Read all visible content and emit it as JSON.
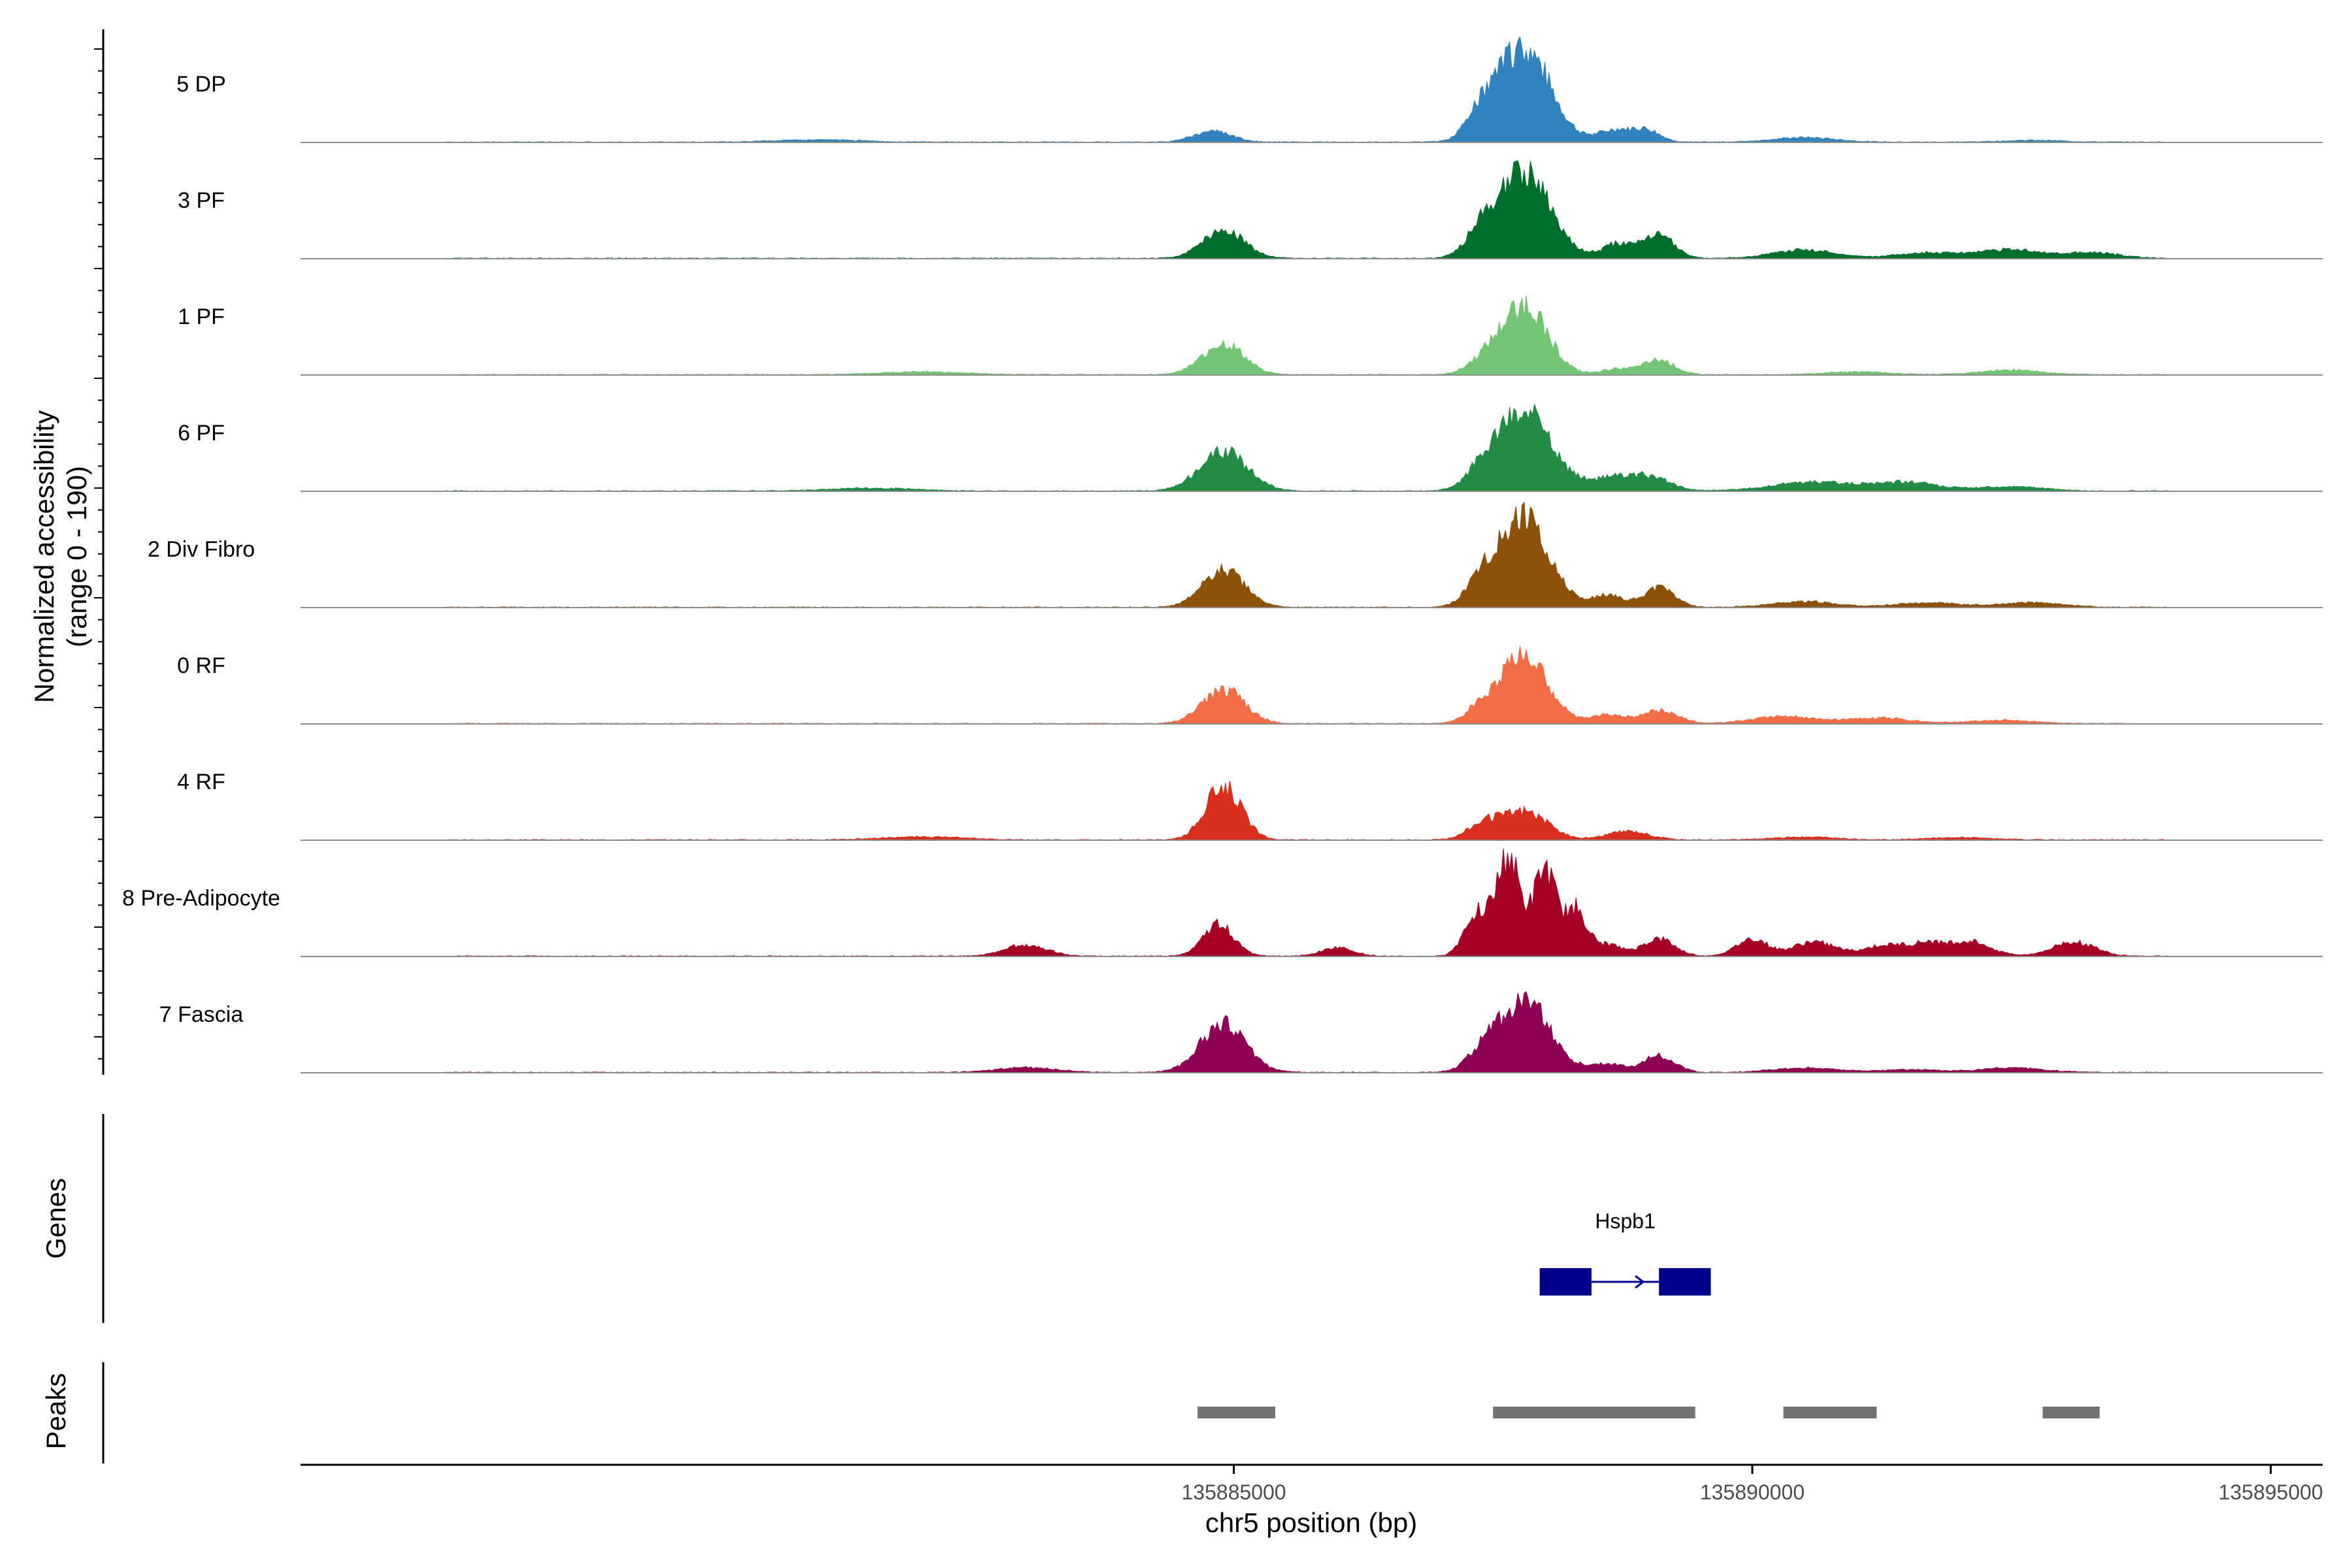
{
  "chart_data": {
    "type": "area",
    "chromosome": "chr5",
    "x_range": [
      135876000,
      135895500
    ],
    "y_range": [
      0,
      190
    ],
    "ylabel_line1": "Normalized accessibility",
    "ylabel_line2": "(range 0 - 190)",
    "xlabel": "chr5 position (bp)",
    "x_ticks": [
      {
        "value": 135885000,
        "label": "135885000"
      },
      {
        "value": 135890000,
        "label": "135890000"
      },
      {
        "value": 135895000,
        "label": "135895000"
      }
    ],
    "series": [
      {
        "name": "5 DP",
        "color": "#3182bd",
        "peaks": [
          [
            135884800,
            20,
            180
          ],
          [
            135887800,
            165,
            250
          ],
          [
            135887400,
            40,
            150
          ],
          [
            135888700,
            22,
            180
          ],
          [
            135889000,
            18,
            120
          ],
          [
            135890500,
            8,
            300
          ],
          [
            135881000,
            4,
            400
          ],
          [
            135892700,
            3,
            300
          ]
        ]
      },
      {
        "name": "3 PF",
        "color": "#006d2c",
        "peaks": [
          [
            135884900,
            50,
            200
          ],
          [
            135887800,
            150,
            250
          ],
          [
            135887400,
            40,
            150
          ],
          [
            135889100,
            40,
            150
          ],
          [
            135888700,
            25,
            150
          ],
          [
            135890500,
            15,
            300
          ],
          [
            135892500,
            15,
            300
          ],
          [
            135891700,
            10,
            300
          ],
          [
            135893300,
            10,
            250
          ]
        ]
      },
      {
        "name": "1 PF",
        "color": "#74c476",
        "peaks": [
          [
            135884900,
            55,
            200
          ],
          [
            135887800,
            125,
            220
          ],
          [
            135887400,
            20,
            150
          ],
          [
            135889100,
            25,
            150
          ],
          [
            135888700,
            10,
            150
          ],
          [
            135892500,
            8,
            300
          ],
          [
            135882000,
            5,
            400
          ],
          [
            135891000,
            5,
            300
          ]
        ]
      },
      {
        "name": "6 PF",
        "color": "#238b45",
        "peaks": [
          [
            135884900,
            70,
            230
          ],
          [
            135887800,
            140,
            260
          ],
          [
            135887400,
            25,
            150
          ],
          [
            135889000,
            25,
            200
          ],
          [
            135888600,
            20,
            200
          ],
          [
            135890600,
            15,
            400
          ],
          [
            135891500,
            15,
            300
          ],
          [
            135892500,
            8,
            300
          ],
          [
            135881500,
            5,
            400
          ]
        ]
      },
      {
        "name": "2 Div Fibro",
        "color": "#8c510a",
        "peaks": [
          [
            135884900,
            65,
            200
          ],
          [
            135887800,
            155,
            240
          ],
          [
            135887400,
            40,
            150
          ],
          [
            135889100,
            35,
            150
          ],
          [
            135888600,
            20,
            150
          ],
          [
            135890500,
            10,
            300
          ],
          [
            135891700,
            8,
            300
          ],
          [
            135892700,
            8,
            300
          ]
        ]
      },
      {
        "name": "0 RF",
        "color": "#f16d47",
        "peaks": [
          [
            135884900,
            60,
            200
          ],
          [
            135887800,
            115,
            230
          ],
          [
            135887400,
            25,
            150
          ],
          [
            135889100,
            22,
            180
          ],
          [
            135888600,
            15,
            150
          ],
          [
            135890300,
            12,
            300
          ],
          [
            135891200,
            10,
            300
          ],
          [
            135892400,
            6,
            300
          ]
        ]
      },
      {
        "name": "4 RF",
        "color": "#d7301f",
        "peaks": [
          [
            135884900,
            95,
            170
          ],
          [
            135887800,
            50,
            220
          ],
          [
            135887400,
            25,
            150
          ],
          [
            135888800,
            15,
            200
          ],
          [
            135890500,
            5,
            300
          ],
          [
            135882000,
            5,
            400
          ],
          [
            135892000,
            4,
            300
          ]
        ]
      },
      {
        "name": "8 Pre-Adipocyte",
        "color": "#a50026",
        "peaks": [
          [
            135887650,
            170,
            110
          ],
          [
            135888000,
            150,
            110
          ],
          [
            135887350,
            80,
            120
          ],
          [
            135888300,
            80,
            100
          ],
          [
            135884850,
            55,
            150
          ],
          [
            135889100,
            30,
            150
          ],
          [
            135888600,
            20,
            150
          ],
          [
            135883000,
            20,
            200
          ],
          [
            135890000,
            30,
            150
          ],
          [
            135890600,
            25,
            200
          ],
          [
            135891300,
            20,
            200
          ],
          [
            135892100,
            25,
            200
          ],
          [
            135893100,
            25,
            200
          ],
          [
            135891700,
            20,
            150
          ],
          [
            135886000,
            15,
            150
          ]
        ]
      },
      {
        "name": "7 Fascia",
        "color": "#8e0152",
        "peaks": [
          [
            135884900,
            85,
            220
          ],
          [
            135887800,
            125,
            250
          ],
          [
            135887400,
            25,
            150
          ],
          [
            135889100,
            30,
            150
          ],
          [
            135888600,
            15,
            150
          ],
          [
            135890500,
            8,
            300
          ],
          [
            135883000,
            8,
            300
          ],
          [
            135892500,
            8,
            300
          ],
          [
            135891500,
            5,
            300
          ]
        ]
      }
    ],
    "genes": [
      {
        "name": "Hspb1",
        "strand": "+",
        "start": 135887950,
        "end": 135889600,
        "exons": [
          [
            135887950,
            135888450
          ],
          [
            135889100,
            135889600
          ]
        ],
        "color": "#00008b"
      }
    ],
    "peaks_track": {
      "color": "#737373",
      "regions": [
        [
          135884650,
          135885400
        ],
        [
          135887500,
          135889450
        ],
        [
          135890300,
          135891200
        ],
        [
          135892800,
          135893350
        ]
      ]
    },
    "track_titles": {
      "genes": "Genes",
      "peaks": "Peaks"
    }
  }
}
